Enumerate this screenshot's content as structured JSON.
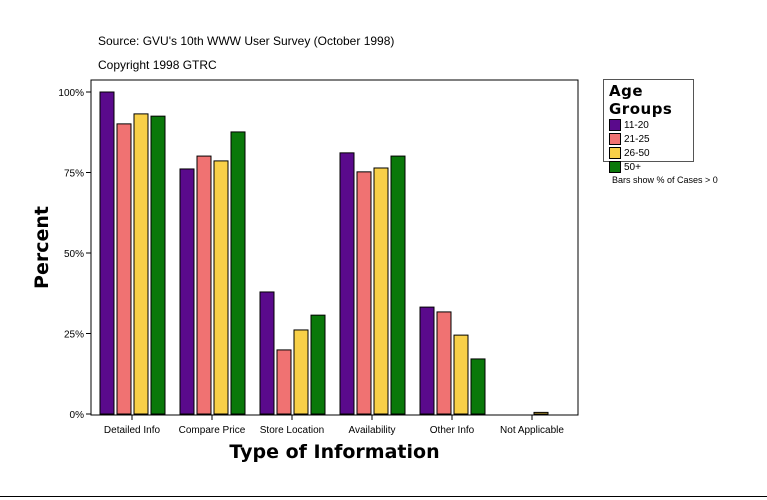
{
  "chart_data": {
    "type": "bar",
    "title": "Source: GVU's 10th WWW User Survey (October 1998)",
    "subtitle": "Copyright 1998 GTRC",
    "xlabel": "Type of Information",
    "ylabel": "Percent",
    "ylim": [
      0,
      100
    ],
    "yticks": [
      "0%",
      "25%",
      "50%",
      "75%",
      "100%"
    ],
    "categories": [
      "Detailed Info",
      "Compare Price",
      "Store Location",
      "Availability",
      "Other Info",
      "Not Applicable"
    ],
    "legend_title": "Age Groups",
    "legend_position": "right",
    "note": "Bars show % of Cases > 0",
    "grid": false,
    "series": [
      {
        "name": "11-20",
        "color": "#5a0a8c",
        "values": [
          100,
          76.1,
          37.9,
          81.1,
          33.2,
          0
        ]
      },
      {
        "name": "21-25",
        "color": "#f07272",
        "values": [
          90.1,
          80.1,
          19.9,
          75.2,
          31.7,
          0
        ]
      },
      {
        "name": "26-50",
        "color": "#f8d048",
        "values": [
          93.2,
          78.6,
          26.1,
          76.4,
          24.5,
          0.5
        ]
      },
      {
        "name": "50+",
        "color": "#0a780a",
        "values": [
          92.5,
          87.6,
          30.7,
          80.1,
          17.1,
          0
        ]
      }
    ]
  }
}
